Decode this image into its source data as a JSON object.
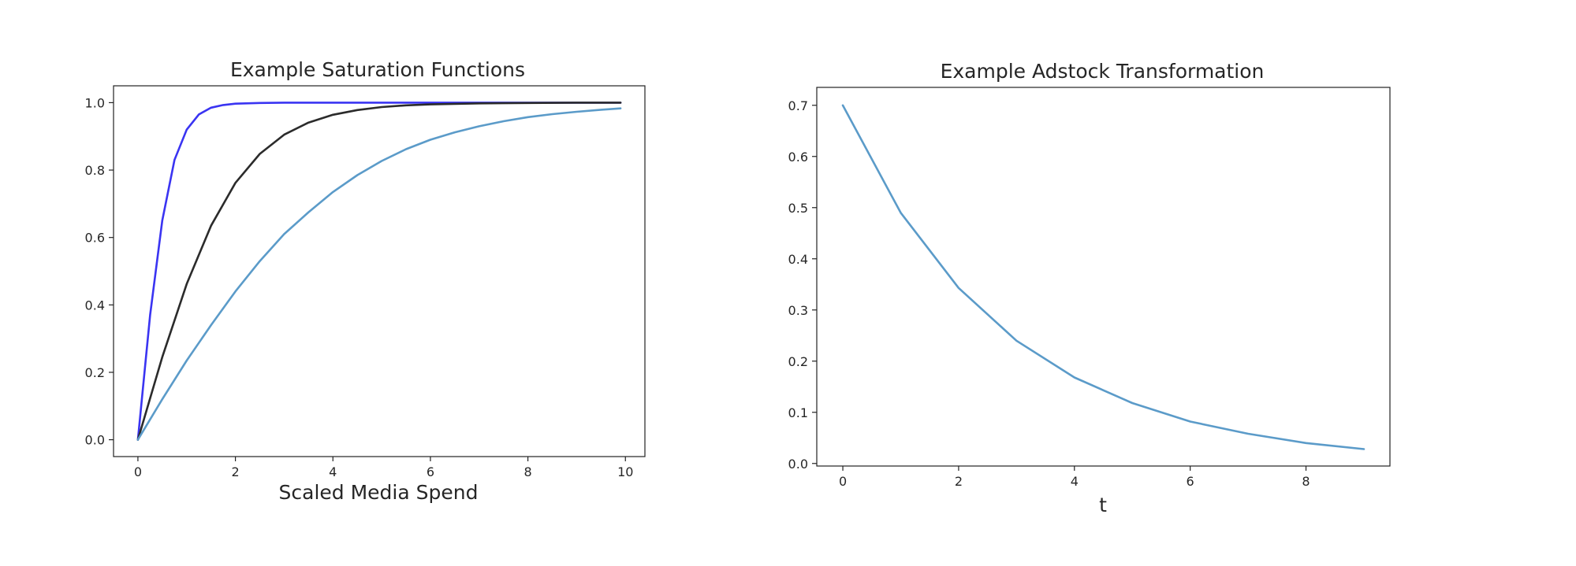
{
  "chart_data": [
    {
      "type": "line",
      "title": "Example Saturation Functions",
      "xlabel": "Scaled Media Spend",
      "ylabel": "",
      "xlim": [
        -0.5,
        10.4
      ],
      "ylim": [
        -0.05,
        1.05
      ],
      "xticks": [
        0,
        2,
        4,
        6,
        8,
        10
      ],
      "yticks": [
        0.0,
        0.2,
        0.4,
        0.6,
        0.8,
        1.0
      ],
      "xtick_labels": [
        "0",
        "2",
        "4",
        "6",
        "8",
        "10"
      ],
      "ytick_labels": [
        "0.0",
        "0.2",
        "0.4",
        "0.6",
        "0.8",
        "1.0"
      ],
      "grid": false,
      "series": [
        {
          "color": "#3a34f2",
          "x": [
            0,
            0.25,
            0.5,
            0.75,
            1.0,
            1.25,
            1.5,
            1.75,
            2.0,
            2.5,
            3.0,
            3.5,
            4.0,
            5.0,
            6.0,
            7.0,
            8.0,
            9.0,
            9.9
          ],
          "y": [
            0,
            0.37,
            0.65,
            0.83,
            0.92,
            0.965,
            0.985,
            0.993,
            0.997,
            0.999,
            1.0,
            1.0,
            1.0,
            1.0,
            1.0,
            1.0,
            1.0,
            1.0,
            1.0
          ]
        },
        {
          "color": "#2b2b2b",
          "x": [
            0,
            0.5,
            1.0,
            1.5,
            2.0,
            2.5,
            3.0,
            3.5,
            4.0,
            4.5,
            5.0,
            5.5,
            6.0,
            7.0,
            8.0,
            9.0,
            9.9
          ],
          "y": [
            0,
            0.245,
            0.462,
            0.635,
            0.762,
            0.848,
            0.905,
            0.941,
            0.964,
            0.978,
            0.987,
            0.992,
            0.995,
            0.998,
            0.999,
            1.0,
            1.0
          ]
        },
        {
          "color": "#5b9bc9",
          "x": [
            0,
            0.5,
            1.0,
            1.5,
            2.0,
            2.5,
            3.0,
            3.5,
            4.0,
            4.5,
            5.0,
            5.5,
            6.0,
            6.5,
            7.0,
            7.5,
            8.0,
            8.5,
            9.0,
            9.5,
            9.9
          ],
          "y": [
            0,
            0.12,
            0.235,
            0.34,
            0.44,
            0.53,
            0.61,
            0.675,
            0.735,
            0.785,
            0.827,
            0.862,
            0.89,
            0.912,
            0.93,
            0.945,
            0.957,
            0.966,
            0.973,
            0.979,
            0.983
          ]
        }
      ]
    },
    {
      "type": "line",
      "title": "Example Adstock Transformation",
      "xlabel": "t",
      "ylabel": "",
      "xlim": [
        -0.45,
        9.45
      ],
      "ylim": [
        -0.005,
        0.735
      ],
      "xticks": [
        0,
        2,
        4,
        6,
        8
      ],
      "yticks": [
        0.0,
        0.1,
        0.2,
        0.3,
        0.4,
        0.5,
        0.6,
        0.7
      ],
      "xtick_labels": [
        "0",
        "2",
        "4",
        "6",
        "8"
      ],
      "ytick_labels": [
        "0.0",
        "0.1",
        "0.2",
        "0.3",
        "0.4",
        "0.5",
        "0.6",
        "0.7"
      ],
      "grid": false,
      "series": [
        {
          "color": "#5b9bc9",
          "x": [
            0,
            1,
            2,
            3,
            4,
            5,
            6,
            7,
            8,
            9
          ],
          "y": [
            0.7,
            0.49,
            0.343,
            0.24,
            0.168,
            0.118,
            0.082,
            0.058,
            0.04,
            0.028
          ]
        }
      ]
    }
  ]
}
